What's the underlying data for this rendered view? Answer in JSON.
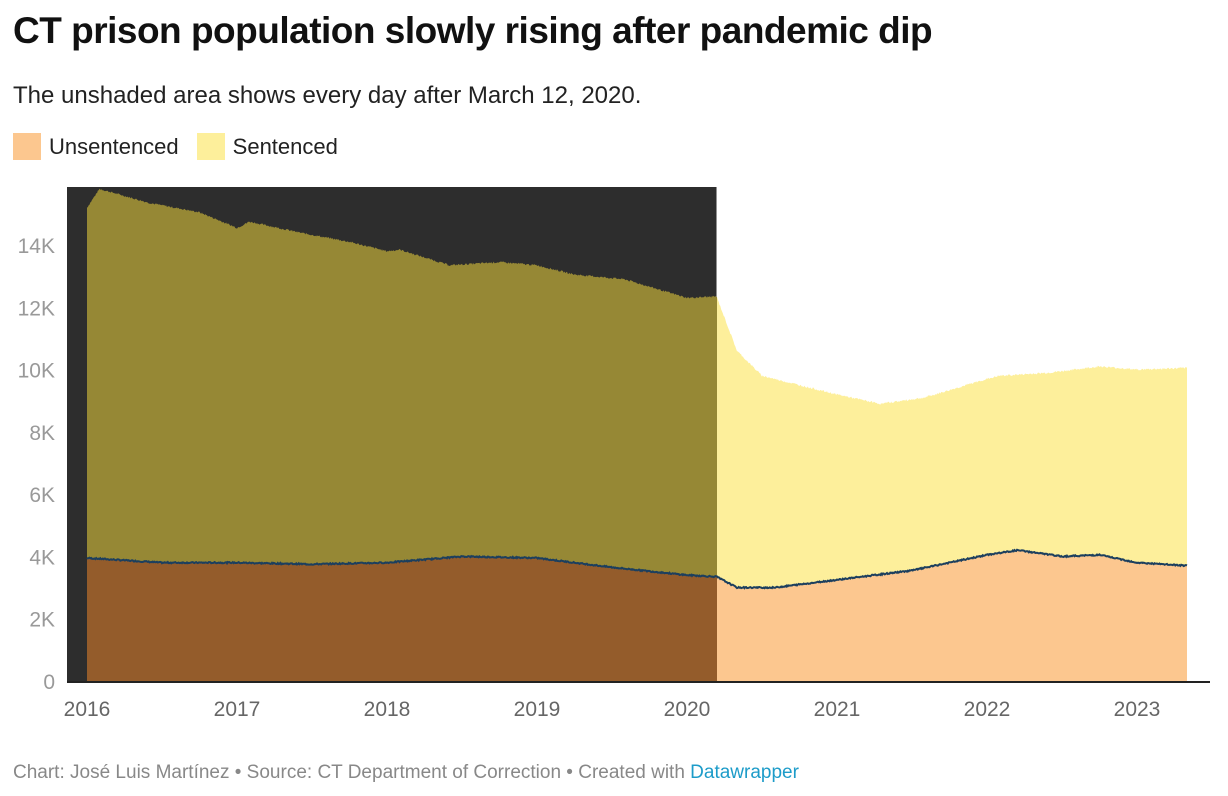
{
  "chart_data": {
    "type": "area",
    "title": "CT prison population slowly rising after pandemic dip",
    "subtitle": "The unshaded area shows every day after March 12, 2020.",
    "xlabel": "",
    "ylabel": "",
    "ylim": [
      0,
      16000
    ],
    "xlim": [
      "2015-11",
      "2023-07"
    ],
    "stacked": true,
    "shaded_until": "2020-03-12",
    "grid": false,
    "legend_placement": "top-left",
    "y_ticks": [
      "0",
      "2K",
      "4K",
      "6K",
      "8K",
      "10K",
      "12K",
      "14K"
    ],
    "x_ticks": [
      "2016",
      "2017",
      "2018",
      "2019",
      "2020",
      "2021",
      "2022",
      "2023"
    ],
    "total": {
      "x": [
        "2016-01-01",
        "2016-02-01",
        "2016-06-01",
        "2016-10-01",
        "2017-01-01",
        "2017-02-01",
        "2017-06-01",
        "2017-10-01",
        "2018-01-01",
        "2018-02-01",
        "2018-06-01",
        "2018-10-01",
        "2019-01-01",
        "2019-04-01",
        "2019-08-01",
        "2020-01-01",
        "2020-03-12",
        "2020-05-01",
        "2020-07-01",
        "2020-10-01",
        "2021-01-01",
        "2021-04-15",
        "2021-08-01",
        "2022-01-01",
        "2022-02-01",
        "2022-06-01",
        "2022-10-01",
        "2023-01-01",
        "2023-05-01"
      ],
      "values": [
        15200,
        15800,
        15350,
        15050,
        14550,
        14750,
        14400,
        14100,
        13800,
        13850,
        13350,
        13450,
        13350,
        13050,
        12900,
        12300,
        12350,
        10600,
        9800,
        9500,
        9200,
        8900,
        9100,
        9700,
        9800,
        9900,
        10100,
        10000,
        10050
      ]
    },
    "series": [
      {
        "name": "Unsentenced",
        "color": "#fcc78f",
        "shaded_color": "#945c2b",
        "x": [
          "2016-01-01",
          "2016-07-01",
          "2017-01-01",
          "2017-07-01",
          "2018-01-01",
          "2018-07-01",
          "2019-01-01",
          "2019-07-01",
          "2020-01-01",
          "2020-03-12",
          "2020-05-01",
          "2020-08-01",
          "2021-01-01",
          "2021-07-01",
          "2022-01-01",
          "2022-03-15",
          "2022-07-01",
          "2022-10-01",
          "2023-01-01",
          "2023-05-01"
        ],
        "values": [
          3950,
          3800,
          3800,
          3750,
          3800,
          4000,
          3950,
          3650,
          3400,
          3350,
          3000,
          3000,
          3250,
          3550,
          4050,
          4200,
          4000,
          4050,
          3800,
          3700
        ]
      },
      {
        "name": "Sentenced",
        "color": "#fdef9b",
        "shaded_color": "#968835",
        "note_values": "total minus unsentenced"
      }
    ],
    "line_color": "#1c3f5e",
    "shade_color": "#2d2d2d"
  },
  "footer": {
    "prefix": "Chart: José Luis Martínez • Source: CT Department of Correction • Created with ",
    "link": "Datawrapper"
  }
}
